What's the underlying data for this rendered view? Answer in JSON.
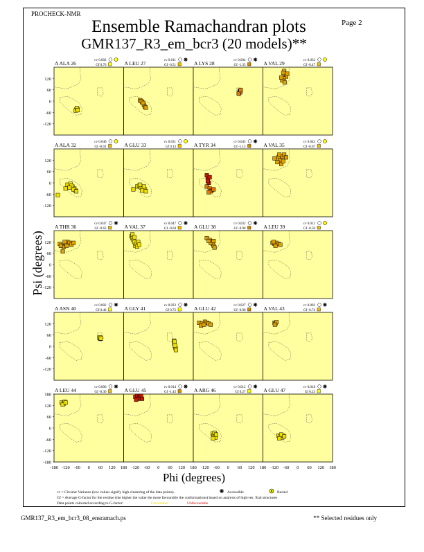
{
  "header": {
    "program": "PROCHECK-NMR",
    "title": "Ensemble Ramachandran plots",
    "subtitle": "GMR137_R3_em_bcr3 (20 models)**",
    "page": "Page  2"
  },
  "axes": {
    "ylabel": "Psi (degrees)",
    "xlabel": "Phi (degrees)",
    "yticks": [
      "120",
      "60",
      "0",
      "-60",
      "-120"
    ],
    "bottom_yticks": [
      "180",
      "120",
      "60",
      "0",
      "-60",
      "-120",
      "-180"
    ],
    "xticks": [
      "-180",
      "-120",
      "-60",
      "0",
      "60",
      "120",
      "180"
    ]
  },
  "legend": {
    "cv_text": "cv = Circular Variance (low values signify high clustering of the data points).",
    "accessible": "Accessible",
    "buried": "Buried",
    "gf_text": "Gf = Average G-factor for the residue (the higher the value the more favourable the conformations) based on analysis of high-res. Xtal structures",
    "colour_text": "Data points coloured according to G-factor:",
    "favourable": "Favourable",
    "unfavourable": "Unfavourable"
  },
  "footer": {
    "filename": "GMR137_R3_em_bcr3_08_ensramach.ps",
    "note": "** Selected residues only"
  },
  "colors": {
    "panel_bg": "#ffff9f",
    "favourable": "#ffff00",
    "unfavourable": "#cc0000",
    "region_line": "#555555"
  },
  "chart_data": {
    "type": "scatter",
    "xlabel": "Phi (degrees)",
    "ylabel": "Psi (degrees)",
    "xlim": [
      -180,
      180
    ],
    "ylim": [
      -180,
      180
    ],
    "panels": [
      {
        "label": "A ALA 26",
        "cv": "cv 0.002",
        "gf": "Gf 0.76",
        "acc": "buried",
        "gfval": 0.76,
        "points": [
          [
            -65,
            -45
          ],
          [
            -60,
            -40
          ],
          [
            -68,
            -50
          ],
          [
            -62,
            -38
          ],
          [
            -58,
            -48
          ]
        ]
      },
      {
        "label": "A LEU 27",
        "cv": "cv 0.011",
        "gf": "Gf -0.51",
        "acc": "accessible",
        "gfval": -0.51,
        "points": [
          [
            -95,
            5
          ],
          [
            -85,
            -5
          ],
          [
            -75,
            -20
          ],
          [
            -70,
            -30
          ],
          [
            -90,
            0
          ],
          [
            -80,
            -10
          ],
          [
            -65,
            -35
          ]
        ]
      },
      {
        "label": "A LYS 28",
        "cv": "cv 0.004",
        "gf": "Gf -1.35",
        "acc": "accessible",
        "gfval": -1.35,
        "points": [
          [
            60,
            55
          ],
          [
            58,
            45
          ],
          [
            62,
            50
          ],
          [
            55,
            40
          ],
          [
            65,
            58
          ]
        ]
      },
      {
        "label": "A VAL 29",
        "cv": "cv 0.032",
        "gf": "Gf -0.47",
        "acc": "buried",
        "gfval": -0.47,
        "points": [
          [
            -70,
            160
          ],
          [
            -65,
            140
          ],
          [
            -75,
            150
          ],
          [
            -60,
            130
          ],
          [
            -72,
            120
          ],
          [
            -80,
            110
          ],
          [
            -68,
            100
          ],
          [
            -85,
            125
          ],
          [
            -55,
            145
          ]
        ]
      },
      {
        "label": "A ALA 32",
        "cv": "cv 0.040",
        "gf": "Gf -0.01",
        "acc": "buried",
        "gfval": -0.01,
        "points": [
          [
            -160,
            -65
          ],
          [
            -120,
            -30
          ],
          [
            -110,
            -10
          ],
          [
            -95,
            -5
          ],
          [
            -85,
            -20
          ],
          [
            -75,
            -30
          ],
          [
            -70,
            -40
          ],
          [
            -90,
            -15
          ],
          [
            -100,
            -25
          ],
          [
            -80,
            -35
          ],
          [
            -65,
            -45
          ]
        ]
      },
      {
        "label": "A GLU 33",
        "cv": "cv 0.031",
        "gf": "Gf 0.13",
        "acc": "buried",
        "gfval": 0.13,
        "points": [
          [
            -130,
            -35
          ],
          [
            -110,
            -20
          ],
          [
            -100,
            -15
          ],
          [
            -90,
            -25
          ],
          [
            -80,
            -30
          ],
          [
            -70,
            -35
          ],
          [
            -95,
            -10
          ],
          [
            -85,
            -40
          ],
          [
            -75,
            -20
          ],
          [
            -65,
            -45
          ]
        ]
      },
      {
        "label": "A TYR 34",
        "cv": "cv 0.045",
        "gf": "Gf -1.13",
        "acc": "accessible",
        "gfval": -1.13,
        "points": [
          [
            -110,
            40
          ],
          [
            -105,
            20
          ],
          [
            -100,
            0
          ],
          [
            -110,
            -20
          ],
          [
            -95,
            -30
          ],
          [
            -85,
            -40
          ],
          [
            -90,
            -45
          ],
          [
            -75,
            -35
          ],
          [
            -100,
            -50
          ],
          [
            -105,
            10
          ],
          [
            -95,
            30
          ]
        ]
      },
      {
        "label": "A VAL 35",
        "cv": "cv 0.043",
        "gf": "Gf -0.67",
        "acc": "buried",
        "gfval": -0.67,
        "points": [
          [
            -120,
            130
          ],
          [
            -100,
            135
          ],
          [
            -90,
            120
          ],
          [
            -80,
            140
          ],
          [
            -70,
            150
          ],
          [
            -60,
            135
          ],
          [
            -105,
            110
          ],
          [
            -85,
            100
          ],
          [
            -75,
            115
          ],
          [
            -95,
            150
          ]
        ]
      },
      {
        "label": "A THR 36",
        "cv": "cv 0.047",
        "gf": "Gf -0.63",
        "acc": "accessible",
        "gfval": -0.63,
        "points": [
          [
            -150,
            110
          ],
          [
            -140,
            100
          ],
          [
            -130,
            95
          ],
          [
            -120,
            110
          ],
          [
            -110,
            120
          ],
          [
            -100,
            115
          ],
          [
            -90,
            105
          ],
          [
            -135,
            70
          ],
          [
            -125,
            120
          ],
          [
            -145,
            100
          ],
          [
            -115,
            100
          ],
          [
            -80,
            115
          ]
        ]
      },
      {
        "label": "A VAL 37",
        "cv": "cv 0.047",
        "gf": "Gf -0.04",
        "acc": "accessible",
        "gfval": -0.04,
        "points": [
          [
            -140,
            150
          ],
          [
            -135,
            140
          ],
          [
            -130,
            130
          ],
          [
            -125,
            120
          ],
          [
            -120,
            100
          ],
          [
            -115,
            110
          ],
          [
            -110,
            95
          ],
          [
            -105,
            120
          ],
          [
            -100,
            105
          ],
          [
            -135,
            160
          ],
          [
            -125,
            145
          ]
        ]
      },
      {
        "label": "A GLU 38",
        "cv": "cv 0.032",
        "gf": "Gf -0.90",
        "acc": "accessible",
        "gfval": -0.9,
        "points": [
          [
            -110,
            140
          ],
          [
            -95,
            130
          ],
          [
            -85,
            120
          ],
          [
            -80,
            110
          ],
          [
            -75,
            100
          ],
          [
            -70,
            90
          ],
          [
            -90,
            115
          ],
          [
            -100,
            125
          ],
          [
            -75,
            125
          ]
        ]
      },
      {
        "label": "A LEU 39",
        "cv": "cv 0.012",
        "gf": "Gf -0.50",
        "acc": "buried",
        "gfval": -0.5,
        "points": [
          [
            -130,
            115
          ],
          [
            -120,
            110
          ],
          [
            -110,
            115
          ],
          [
            -100,
            110
          ],
          [
            -90,
            105
          ],
          [
            -115,
            100
          ],
          [
            -125,
            120
          ]
        ]
      },
      {
        "label": "A ASN 40",
        "cv": "cv 0.002",
        "gf": "Gf 0.46",
        "acc": "accessible",
        "gfval": 0.46,
        "points": [
          [
            55,
            45
          ],
          [
            60,
            40
          ],
          [
            58,
            48
          ],
          [
            62,
            42
          ]
        ]
      },
      {
        "label": "A GLY 41",
        "cv": "cv 0.023",
        "gf": "Gf 0.72",
        "acc": "accessible",
        "gfval": 0.72,
        "points": [
          [
            80,
            30
          ],
          [
            82,
            15
          ],
          [
            85,
            0
          ],
          [
            88,
            -10
          ],
          [
            90,
            -20
          ],
          [
            85,
            5
          ],
          [
            83,
            25
          ]
        ]
      },
      {
        "label": "A GLU 42",
        "cv": "cv 0.027",
        "gf": "Gf -0.90",
        "acc": "accessible",
        "gfval": -0.9,
        "points": [
          [
            -150,
            125
          ],
          [
            -135,
            120
          ],
          [
            -120,
            130
          ],
          [
            -110,
            125
          ],
          [
            -100,
            120
          ],
          [
            -90,
            115
          ],
          [
            -140,
            110
          ],
          [
            -125,
            115
          ]
        ]
      },
      {
        "label": "A VAL 43",
        "cv": "cv 0.002",
        "gf": "Gf -0.74",
        "acc": "accessible",
        "gfval": -0.74,
        "points": [
          [
            -120,
            125
          ],
          [
            -115,
            120
          ],
          [
            -110,
            128
          ],
          [
            -118,
            115
          ]
        ]
      },
      {
        "label": "A LEU 44",
        "cv": "cv 0.006",
        "gf": "Gf -0.30",
        "acc": "accessible",
        "gfval": -0.3,
        "points": [
          [
            -140,
            135
          ],
          [
            -130,
            130
          ],
          [
            -125,
            140
          ],
          [
            -135,
            125
          ],
          [
            -120,
            135
          ]
        ]
      },
      {
        "label": "A GLU 45",
        "cv": "cv 0.014",
        "gf": "Gf -1.43",
        "acc": "accessible",
        "gfval": -1.43,
        "points": [
          [
            -120,
            165
          ],
          [
            -110,
            170
          ],
          [
            -100,
            165
          ],
          [
            -95,
            160
          ],
          [
            -90,
            170
          ],
          [
            -105,
            155
          ],
          [
            -115,
            150
          ],
          [
            -85,
            155
          ]
        ]
      },
      {
        "label": "A ARG 46",
        "cv": "cv 0.012",
        "gf": "Gf 0.27",
        "acc": "accessible",
        "gfval": 0.27,
        "points": [
          [
            -80,
            -30
          ],
          [
            -75,
            -40
          ],
          [
            -70,
            -45
          ],
          [
            -65,
            -50
          ],
          [
            -70,
            -25
          ],
          [
            -78,
            -55
          ],
          [
            -62,
            -35
          ]
        ]
      },
      {
        "label": "A GLU 47",
        "cv": "cv 0.018",
        "gf": "Gf 0.23",
        "acc": "accessible",
        "gfval": 0.23,
        "points": [
          [
            -100,
            -40
          ],
          [
            -90,
            -45
          ],
          [
            -80,
            -50
          ],
          [
            -75,
            -40
          ],
          [
            -85,
            -35
          ],
          [
            -95,
            -55
          ],
          [
            -70,
            -45
          ]
        ]
      }
    ]
  }
}
